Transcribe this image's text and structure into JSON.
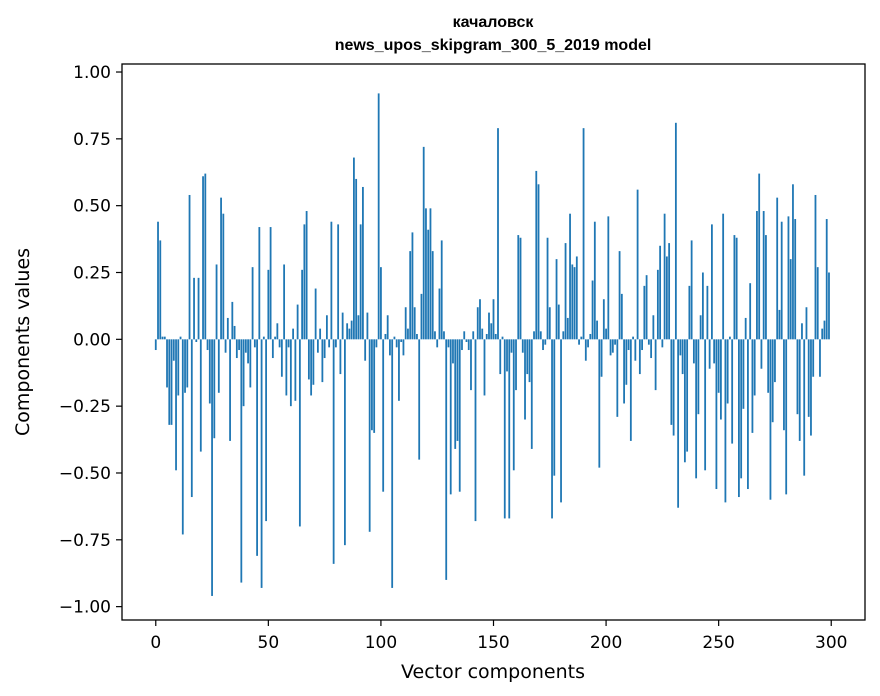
{
  "chart_data": {
    "type": "bar",
    "title": "качаловск",
    "subtitle": "news_upos_skipgram_300_5_2019 model",
    "xlabel": "Vector components",
    "ylabel": "Components values",
    "xlim": [
      -15,
      315
    ],
    "ylim": [
      -1.05,
      1.03
    ],
    "x_ticks": [
      0,
      50,
      100,
      150,
      200,
      250,
      300
    ],
    "x_tick_labels": [
      "0",
      "50",
      "100",
      "150",
      "200",
      "250",
      "300"
    ],
    "y_ticks": [
      1.0,
      0.75,
      0.5,
      0.25,
      0.0,
      -0.25,
      -0.5,
      -0.75,
      -1.0
    ],
    "y_tick_labels": [
      "1.00",
      "0.75",
      "0.50",
      "0.25",
      "0.00",
      "−0.25",
      "−0.50",
      "−0.75",
      "−1.00"
    ],
    "bar_color": "#1f77b4",
    "grid": false,
    "values": [
      -0.04,
      0.44,
      0.37,
      0.01,
      0.01,
      -0.18,
      -0.32,
      -0.32,
      -0.08,
      -0.49,
      -0.21,
      0.01,
      -0.73,
      -0.2,
      -0.18,
      0.54,
      -0.59,
      0.23,
      -0.01,
      0.23,
      -0.42,
      0.61,
      0.62,
      -0.04,
      -0.24,
      -0.96,
      -0.37,
      0.28,
      -0.2,
      0.53,
      0.47,
      -0.05,
      0.08,
      -0.38,
      0.14,
      0.05,
      -0.07,
      -0.04,
      -0.91,
      -0.25,
      -0.05,
      -0.09,
      -0.18,
      0.27,
      -0.03,
      -0.81,
      0.42,
      -0.93,
      0.01,
      -0.68,
      0.26,
      0.42,
      -0.07,
      0.01,
      0.06,
      -0.03,
      -0.14,
      0.28,
      -0.21,
      -0.03,
      -0.25,
      0.04,
      -0.23,
      0.13,
      -0.7,
      0.26,
      0.43,
      0.48,
      -0.15,
      -0.21,
      -0.17,
      0.19,
      -0.05,
      0.04,
      -0.16,
      -0.07,
      0.09,
      -0.03,
      0.44,
      -0.84,
      -0.03,
      0.43,
      -0.13,
      0.1,
      -0.77,
      0.06,
      0.04,
      0.07,
      0.68,
      0.6,
      0.09,
      0.43,
      0.57,
      -0.08,
      0.1,
      -0.72,
      -0.34,
      -0.35,
      -0.03,
      0.92,
      0.27,
      -0.57,
      0.02,
      0.09,
      -0.06,
      -0.93,
      0.01,
      -0.03,
      -0.23,
      -0.01,
      -0.06,
      0.12,
      0.04,
      0.33,
      0.4,
      0.12,
      0.02,
      -0.45,
      0.17,
      0.72,
      0.49,
      0.41,
      0.49,
      0.33,
      0.03,
      -0.03,
      0.19,
      0.37,
      0.03,
      -0.9,
      -0.03,
      -0.58,
      -0.09,
      -0.41,
      -0.38,
      -0.57,
      -0.04,
      0.03,
      -0.01,
      -0.04,
      -0.19,
      0.03,
      -0.68,
      0.12,
      0.15,
      0.04,
      -0.21,
      0.02,
      0.1,
      0.06,
      0.15,
      0.02,
      0.79,
      -0.13,
      0.01,
      -0.67,
      -0.12,
      -0.67,
      -0.05,
      -0.49,
      -0.19,
      0.39,
      0.38,
      -0.05,
      -0.3,
      -0.13,
      -0.16,
      -0.41,
      0.03,
      0.63,
      0.58,
      0.03,
      -0.04,
      -0.02,
      0.38,
      0.12,
      -0.67,
      -0.51,
      0.3,
      0.13,
      -0.61,
      0.03,
      0.36,
      0.08,
      0.47,
      0.28,
      0.27,
      0.31,
      -0.02,
      0.01,
      0.79,
      -0.08,
      -0.03,
      0.02,
      0.22,
      0.44,
      0.07,
      -0.48,
      -0.14,
      0.15,
      0.04,
      0.46,
      -0.06,
      -0.05,
      -0.02,
      -0.29,
      0.33,
      0.17,
      -0.24,
      -0.17,
      -0.04,
      -0.38,
      0.01,
      -0.08,
      0.56,
      -0.13,
      -0.04,
      0.2,
      0.24,
      -0.02,
      -0.07,
      0.09,
      -0.19,
      0.26,
      0.35,
      -0.03,
      0.47,
      0.31,
      0.36,
      -0.32,
      -0.36,
      0.81,
      -0.63,
      -0.06,
      -0.13,
      -0.46,
      -0.42,
      0.2,
      0.37,
      -0.09,
      -0.52,
      -0.28,
      0.09,
      0.25,
      -0.49,
      0.2,
      -0.11,
      0.43,
      -0.09,
      -0.56,
      -0.2,
      -0.3,
      0.47,
      -0.61,
      -0.24,
      0.01,
      -0.39,
      0.39,
      0.38,
      -0.59,
      -0.52,
      -0.26,
      0.08,
      -0.56,
      0.21,
      -0.35,
      -0.21,
      0.48,
      0.62,
      -0.11,
      0.48,
      0.39,
      -0.2,
      -0.6,
      -0.31,
      -0.16,
      0.53,
      0.11,
      0.44,
      -0.34,
      -0.58,
      0.46,
      0.3,
      0.58,
      0.45,
      -0.28,
      -0.38,
      0.06,
      -0.51,
      0.12,
      -0.29,
      -0.36,
      -0.14,
      0.54,
      0.27,
      -0.14,
      0.04,
      0.07,
      0.45,
      0.25
    ]
  }
}
